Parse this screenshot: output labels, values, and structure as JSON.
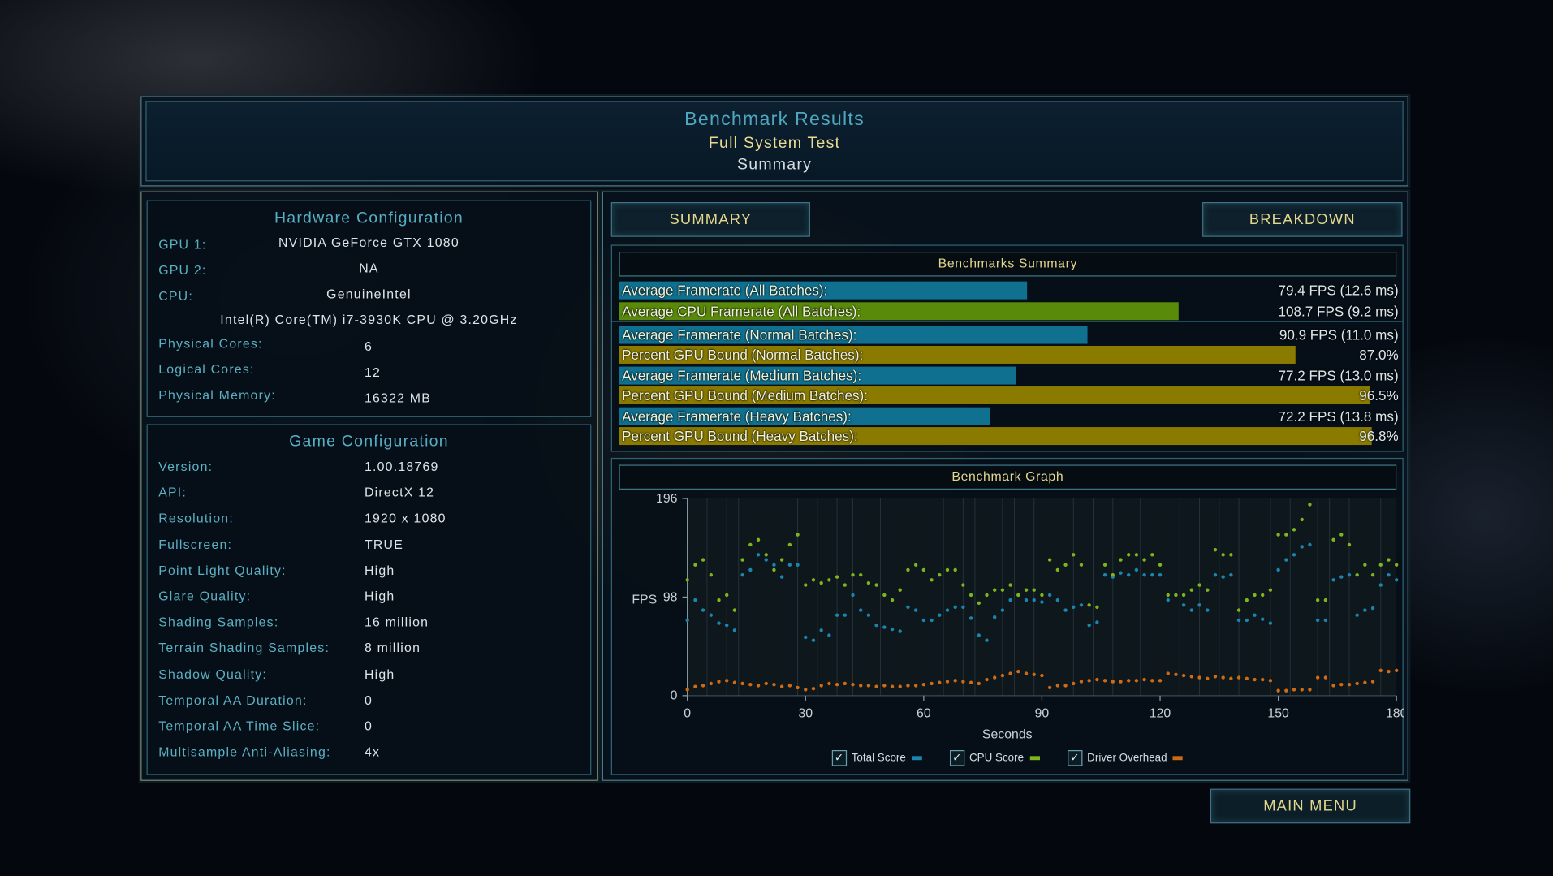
{
  "header": {
    "title": "Benchmark Results",
    "subtitle": "Full System Test",
    "view": "Summary"
  },
  "hardware": {
    "title": "Hardware Configuration",
    "gpu1_label": "GPU 1:",
    "gpu1": "NVIDIA GeForce GTX 1080",
    "gpu2_label": "GPU 2:",
    "gpu2": "NA",
    "cpu_label": "CPU:",
    "cpu": "GenuineIntel",
    "cpu_model": "Intel(R) Core(TM) i7-3930K CPU @ 3.20GHz",
    "rows": [
      {
        "label": "Physical Cores:",
        "value": "6"
      },
      {
        "label": "Logical Cores:",
        "value": "12"
      },
      {
        "label": "Physical Memory:",
        "value": "16322 MB"
      }
    ]
  },
  "game": {
    "title": "Game Configuration",
    "rows": [
      {
        "label": "Version:",
        "value": "1.00.18769"
      },
      {
        "label": "API:",
        "value": "DirectX 12"
      },
      {
        "label": "Resolution:",
        "value": "1920 x 1080"
      },
      {
        "label": "Fullscreen:",
        "value": "TRUE"
      },
      {
        "label": "Point Light Quality:",
        "value": "High"
      },
      {
        "label": "Glare Quality:",
        "value": "High"
      },
      {
        "label": "Shading Samples:",
        "value": "16 million"
      },
      {
        "label": "Terrain Shading Samples:",
        "value": "8 million"
      },
      {
        "label": "Shadow Quality:",
        "value": "High"
      },
      {
        "label": "Temporal AA Duration:",
        "value": "0"
      },
      {
        "label": "Temporal AA Time Slice:",
        "value": "0"
      },
      {
        "label": "Multisample Anti-Aliasing:",
        "value": "4x"
      }
    ]
  },
  "tabs": {
    "summary": "SUMMARY",
    "breakdown": "BREAKDOWN",
    "active": "summary"
  },
  "summary": {
    "title": "Benchmarks Summary",
    "rows": [
      {
        "label": "Average Framerate (All Batches):",
        "value": "79.4 FPS (12.6 ms)",
        "fill": 0.525,
        "color": "#0f7090"
      },
      {
        "label": "Average CPU Framerate (All Batches):",
        "value": "108.7 FPS (9.2 ms)",
        "fill": 0.72,
        "color": "#5a8a0a"
      },
      {
        "label": "Average Framerate (Normal Batches):",
        "value": "90.9 FPS (11.0 ms)",
        "fill": 0.603,
        "color": "#0f7090"
      },
      {
        "label": "Percent GPU Bound (Normal Batches):",
        "value": "87.0%",
        "fill": 0.87,
        "color": "#8a7a00"
      },
      {
        "label": "Average Framerate (Medium Batches):",
        "value": "77.2 FPS (13.0 ms)",
        "fill": 0.511,
        "color": "#0f7090"
      },
      {
        "label": "Percent GPU Bound (Medium Batches):",
        "value": "96.5%",
        "fill": 0.965,
        "color": "#8a7a00"
      },
      {
        "label": "Average Framerate (Heavy Batches):",
        "value": "72.2 FPS (13.8 ms)",
        "fill": 0.478,
        "color": "#0f7090"
      },
      {
        "label": "Percent GPU Bound (Heavy Batches):",
        "value": "96.8%",
        "fill": 0.968,
        "color": "#8a7a00"
      }
    ]
  },
  "graph": {
    "title": "Benchmark Graph"
  },
  "chart_data": {
    "type": "scatter",
    "ylabel": "FPS",
    "xlabel": "Seconds",
    "xlim": [
      0,
      180
    ],
    "ylim": [
      0,
      196
    ],
    "xticks": [
      "0",
      "30",
      "60",
      "90",
      "120",
      "150",
      "180"
    ],
    "yticks": [
      "0",
      "98",
      "196"
    ],
    "legend_placement": "bottom",
    "x": [
      0,
      2,
      4,
      6,
      8,
      10,
      12,
      14,
      16,
      18,
      20,
      22,
      24,
      26,
      28,
      30,
      32,
      34,
      36,
      38,
      40,
      42,
      44,
      46,
      48,
      50,
      52,
      54,
      56,
      58,
      60,
      62,
      64,
      66,
      68,
      70,
      72,
      74,
      76,
      78,
      80,
      82,
      84,
      86,
      88,
      90,
      92,
      94,
      96,
      98,
      100,
      102,
      104,
      106,
      108,
      110,
      112,
      114,
      116,
      118,
      120,
      122,
      124,
      126,
      128,
      130,
      132,
      134,
      136,
      138,
      140,
      142,
      144,
      146,
      148,
      150,
      152,
      154,
      156,
      158,
      160,
      162,
      164,
      166,
      168,
      170,
      172,
      174,
      176,
      178,
      180
    ],
    "series": [
      {
        "name": "Total Score",
        "color": "#1a86b0",
        "checked": true,
        "values": [
          75,
          95,
          85,
          80,
          72,
          70,
          65,
          120,
          125,
          140,
          135,
          130,
          118,
          130,
          130,
          58,
          55,
          65,
          60,
          80,
          80,
          100,
          85,
          80,
          70,
          68,
          66,
          64,
          88,
          85,
          75,
          75,
          80,
          85,
          88,
          88,
          77,
          60,
          55,
          78,
          85,
          95,
          100,
          95,
          95,
          93,
          100,
          95,
          85,
          88,
          90,
          70,
          73,
          120,
          118,
          122,
          120,
          125,
          120,
          120,
          120,
          95,
          100,
          90,
          85,
          90,
          85,
          120,
          118,
          120,
          75,
          75,
          80,
          76,
          72,
          125,
          135,
          140,
          148,
          150,
          75,
          75,
          115,
          118,
          120,
          80,
          85,
          87,
          110,
          120,
          115
        ]
      },
      {
        "name": "CPU Score",
        "color": "#7fb51c",
        "checked": true,
        "values": [
          115,
          130,
          135,
          120,
          95,
          100,
          85,
          135,
          150,
          155,
          140,
          125,
          135,
          150,
          160,
          110,
          115,
          112,
          115,
          118,
          110,
          120,
          120,
          112,
          110,
          100,
          95,
          105,
          125,
          130,
          125,
          115,
          120,
          125,
          125,
          110,
          100,
          92,
          100,
          105,
          105,
          110,
          100,
          105,
          105,
          100,
          135,
          125,
          130,
          140,
          130,
          90,
          88,
          130,
          120,
          135,
          140,
          140,
          135,
          140,
          130,
          100,
          100,
          100,
          105,
          110,
          105,
          145,
          140,
          140,
          85,
          95,
          100,
          100,
          105,
          160,
          160,
          165,
          175,
          190,
          95,
          95,
          155,
          160,
          150,
          120,
          130,
          120,
          130,
          135,
          130
        ]
      },
      {
        "name": "Driver Overhead",
        "color": "#d06a14",
        "checked": true,
        "values": [
          6,
          9,
          10,
          12,
          14,
          15,
          13,
          12,
          11,
          10,
          12,
          11,
          9,
          10,
          8,
          6,
          7,
          10,
          12,
          11,
          12,
          11,
          10,
          10,
          9,
          10,
          9,
          9,
          10,
          10,
          11,
          12,
          13,
          14,
          15,
          14,
          13,
          12,
          16,
          18,
          20,
          22,
          24,
          22,
          21,
          20,
          8,
          10,
          10,
          12,
          14,
          15,
          16,
          15,
          14,
          14,
          15,
          15,
          16,
          15,
          15,
          22,
          21,
          20,
          19,
          18,
          17,
          19,
          18,
          17,
          18,
          17,
          16,
          16,
          15,
          5,
          5,
          6,
          6,
          6,
          18,
          18,
          10,
          11,
          11,
          12,
          13,
          14,
          25,
          24,
          25
        ]
      }
    ]
  },
  "main_menu": "MAIN MENU"
}
